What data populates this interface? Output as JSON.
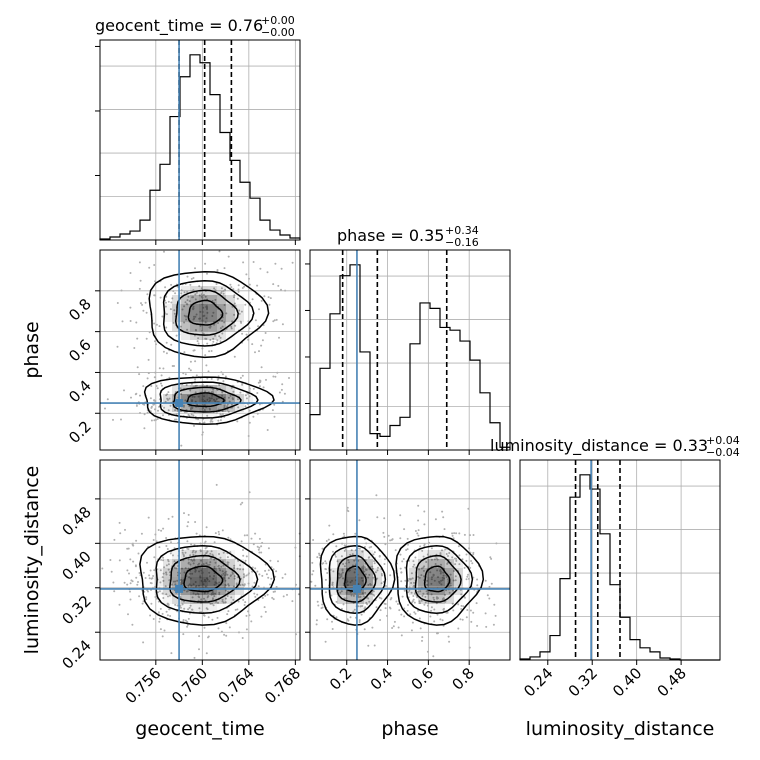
{
  "colors": {
    "truth": "#4682b4",
    "hist": "#000000",
    "grid": "#b0b0b0",
    "density": "#000000",
    "points": "#b0b0b0"
  },
  "chart_data": {
    "type": "corner",
    "parameters": [
      "geocent_time",
      "phase",
      "luminosity_distance"
    ],
    "truths": {
      "geocent_time": 0.758,
      "phase": 0.25,
      "luminosity_distance": 0.318
    },
    "ranges": {
      "geocent_time": [
        0.7512,
        0.7684
      ],
      "phase": [
        0.02,
        1.0
      ],
      "luminosity_distance": [
        0.19,
        0.55
      ]
    },
    "titles": {
      "geocent_time": {
        "median": "0.76",
        "plus": "+0.00",
        "minus": "−0.00",
        "prefix": "geocent_time = "
      },
      "phase": {
        "median": "0.35",
        "plus": "+0.34",
        "minus": "−0.16",
        "prefix": "phase = "
      },
      "luminosity_distance": {
        "median": "0.33",
        "plus": "+0.04",
        "minus": "−0.04",
        "prefix": "luminosity_distance = "
      }
    },
    "quantiles": {
      "geocent_time": [
        0.758,
        0.7602,
        0.7625
      ],
      "phase": [
        0.18,
        0.35,
        0.69
      ],
      "luminosity_distance": [
        0.29,
        0.33,
        0.37
      ]
    },
    "ticks": {
      "geocent_time": [
        "0.756",
        "0.760",
        "0.764",
        "0.768"
      ],
      "phase_x": [
        "0.2",
        "0.4",
        "0.6",
        "0.8"
      ],
      "phase_y": [
        "0.2",
        "0.4",
        "0.6",
        "0.8"
      ],
      "luminosity_distance_x": [
        "0.24",
        "0.32",
        "0.40",
        "0.48"
      ],
      "luminosity_distance_y": [
        "0.24",
        "0.32",
        "0.40",
        "0.48"
      ]
    },
    "axis_labels": {
      "x": [
        "geocent_time",
        "phase",
        "luminosity_distance"
      ],
      "y": [
        "phase",
        "luminosity_distance"
      ]
    },
    "histograms": {
      "geocent_time": {
        "range": [
          0.7512,
          0.7684
        ],
        "counts": [
          0.5,
          1.5,
          3.0,
          4.5,
          10,
          25,
          38,
          62,
          82,
          93,
          89,
          73,
          54,
          40,
          29,
          21,
          10,
          5,
          2.5,
          1.0
        ]
      },
      "phase": {
        "range": [
          0.02,
          1.0
        ],
        "counts": [
          13,
          30,
          50,
          64,
          68,
          36,
          6,
          5,
          9,
          12,
          39,
          54,
          52,
          45,
          44,
          40,
          33,
          21,
          10,
          1
        ]
      },
      "luminosity_distance": {
        "range": [
          0.19,
          0.55
        ],
        "counts": [
          0.5,
          1.5,
          4,
          12,
          40,
          80,
          91,
          84,
          62,
          37,
          21,
          10,
          6,
          4,
          1,
          0.5,
          0,
          0,
          0,
          0
        ]
      }
    },
    "grid": true
  }
}
